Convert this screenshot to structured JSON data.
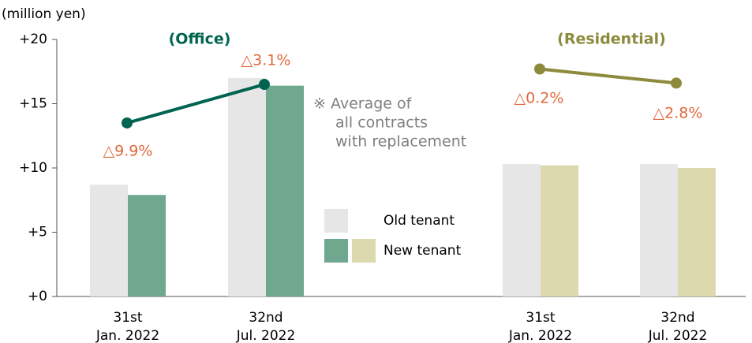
{
  "chart_data": {
    "type": "bar",
    "unit_label": "(million yen)",
    "groups": [
      {
        "title": "(Office)",
        "color": "#006450"
      },
      {
        "title": "(Residential)",
        "color": "#8c8a3c"
      }
    ],
    "categories": [
      [
        "31st",
        "Jan. 2022"
      ],
      [
        "32nd",
        "Jul. 2022"
      ],
      [
        "31st",
        "Jan. 2022"
      ],
      [
        "32nd",
        "Jul. 2022"
      ]
    ],
    "series": [
      {
        "name": "Old tenant",
        "color": "#e6e6e6",
        "values": [
          8.7,
          17.0,
          10.3,
          10.3
        ]
      },
      {
        "name": "New tenant",
        "colors": [
          "#6fa78f",
          "#6fa78f",
          "#ddd9ae",
          "#ddd9ae"
        ],
        "values": [
          7.9,
          16.4,
          10.2,
          10.0
        ]
      }
    ],
    "lines": [
      {
        "color": "#006450",
        "values": [
          13.5,
          16.5
        ]
      },
      {
        "color": "#8c8a3c",
        "values": [
          17.7,
          16.6
        ]
      }
    ],
    "change_labels": [
      "△9.9%",
      "△3.1%",
      "△0.2%",
      "△2.8%"
    ],
    "note": [
      "※ Average of",
      "all contracts",
      "with replacement"
    ],
    "ylim": [
      0,
      20
    ],
    "yticks": [
      {
        "value": 0,
        "label": "+0"
      },
      {
        "value": 5,
        "label": "+5"
      },
      {
        "value": 10,
        "label": "+10"
      },
      {
        "value": 15,
        "label": "+15"
      },
      {
        "value": 20,
        "label": "+20"
      }
    ]
  }
}
